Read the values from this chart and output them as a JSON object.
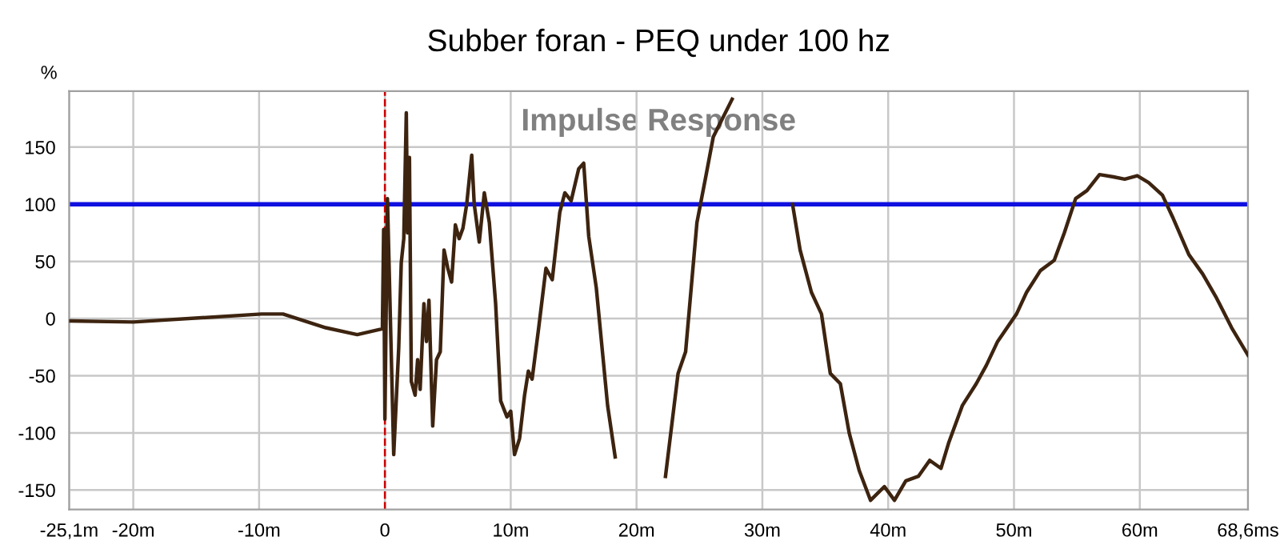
{
  "chart_data": {
    "type": "line",
    "title": "Subber foran - PEQ under 100 hz",
    "ylabel": "%",
    "annotations": [
      "Impulse Response"
    ],
    "xlim": [
      -25.1,
      68.6
    ],
    "ylim": [
      -167,
      199
    ],
    "xticks": [
      {
        "value": -25.1,
        "label": "-25,1m"
      },
      {
        "value": -20,
        "label": "-20m"
      },
      {
        "value": -10,
        "label": "-10m"
      },
      0,
      {
        "value": 10,
        "label": "10m"
      },
      {
        "value": 20,
        "label": "20m"
      },
      {
        "value": 30,
        "label": "30m"
      },
      {
        "value": 40,
        "label": "40m"
      },
      {
        "value": 50,
        "label": "50m"
      },
      {
        "value": 60,
        "label": "60m"
      },
      {
        "value": 68.6,
        "label": "68,6ms"
      }
    ],
    "yticks": [
      -150,
      -100,
      -50,
      0,
      50,
      100,
      150
    ],
    "grid": true,
    "marker": "none",
    "line_style": "solid",
    "ref_lines": [
      {
        "axis": "y",
        "value": 100,
        "label": null,
        "color": "#1010e0",
        "line_style": "solid"
      },
      {
        "axis": "x",
        "value": 0,
        "label": null,
        "color": "#cc0000",
        "line_style": "dashed"
      }
    ],
    "series": [
      {
        "color": "#3d2410",
        "x": [
          -25,
          -20,
          -9.8,
          -8.1,
          -4.7,
          -2.2,
          -0.2,
          -0.1,
          0,
          0.2,
          0.7,
          1.1,
          1.3,
          1.5,
          1.7,
          1.8,
          1.95,
          2.1,
          2.4,
          2.6,
          2.8,
          3.1,
          3.3,
          3.5,
          3.8,
          4.1,
          4.4,
          4.7,
          5.0,
          5.3,
          5.6,
          5.9,
          6.2,
          6.5,
          6.9,
          7.1,
          7.5,
          7.9,
          8.3,
          8.8,
          9.2,
          9.7,
          10.0,
          10.3,
          10.7,
          11.1,
          11.4,
          11.7,
          12.2,
          12.8,
          13.3,
          13.9,
          14.3,
          14.8,
          15.4,
          15.8,
          16.2,
          16.8,
          17.7,
          18.3,
          18.7,
          20,
          21.8,
          22.3,
          23.3,
          23.9,
          24.8,
          25.5,
          26.1,
          27.6,
          28.1,
          30,
          31.5,
          32.4,
          33.0,
          33.9,
          34.7,
          35.4,
          36.2,
          36.9,
          37.7,
          38.6,
          39.7,
          40.5,
          41.4,
          42.4,
          43.3,
          44.2,
          44.8,
          45.9,
          47.0,
          47.8,
          48.7,
          50.2,
          51.0,
          52.1,
          53.2,
          54.0,
          54.9,
          55.8,
          56.8,
          57.9,
          58.8,
          59.8,
          60.7,
          61.8,
          62.6,
          63.9,
          65.0,
          66.1,
          67.3,
          68.6
        ],
        "values": [
          -2,
          -3,
          4,
          4,
          -8,
          -14,
          -9,
          78,
          -88,
          105,
          -119,
          -25,
          49,
          70,
          180,
          75,
          141,
          -55,
          -67,
          -36,
          -62,
          13,
          -20,
          16,
          -94,
          -36,
          -29,
          60,
          44,
          32,
          82,
          70,
          79,
          100,
          143,
          100,
          67,
          110,
          84,
          13,
          -72,
          -86,
          -81,
          -119,
          -105,
          -67,
          -46,
          -53,
          -10,
          44,
          34,
          93,
          110,
          103,
          131,
          136,
          72,
          27,
          -76,
          -121,
          null,
          null,
          null,
          -138,
          -48,
          -29,
          84,
          124,
          159,
          192,
          null,
          null,
          null,
          100,
          60,
          23,
          4,
          -48,
          -57,
          -100,
          -133,
          -159,
          -147,
          -159,
          -142,
          -138,
          -124,
          -131,
          -109,
          -76,
          -57,
          -41,
          -20,
          4,
          23,
          42,
          51,
          75,
          105,
          112,
          126,
          124,
          122,
          125,
          119,
          108,
          89,
          56,
          39,
          18,
          -8,
          -32
        ]
      }
    ]
  }
}
